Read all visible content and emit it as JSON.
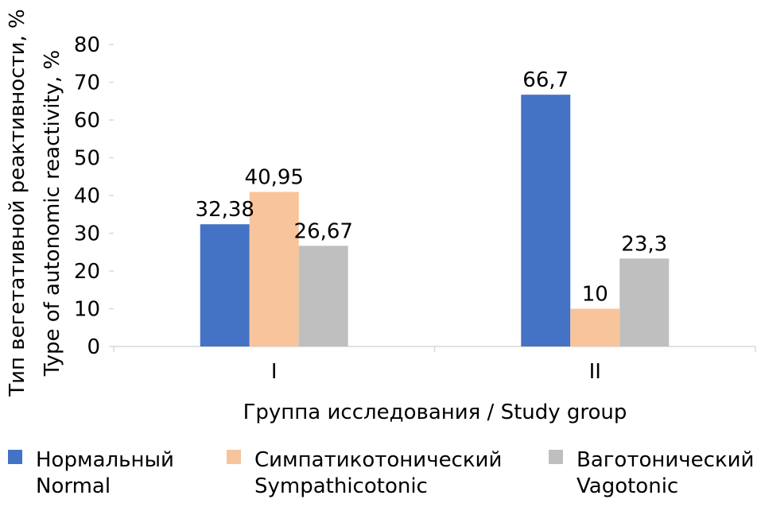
{
  "chart_data": {
    "type": "bar",
    "categories": [
      "I",
      "II"
    ],
    "series": [
      {
        "name": "Нормальный",
        "name_en": "Normal",
        "color": "#4472C4",
        "values": [
          32.38,
          66.7
        ],
        "value_labels": [
          "32,38",
          "66,7"
        ]
      },
      {
        "name": "Симпатикотонический",
        "name_en": "Sympathicotonic",
        "color": "#F8C49B",
        "values": [
          40.95,
          10
        ],
        "value_labels": [
          "40,95",
          "10"
        ]
      },
      {
        "name": "Ваготонический",
        "name_en": "Vagotonic",
        "color": "#BFBFBF",
        "values": [
          26.67,
          23.3
        ],
        "value_labels": [
          "26,67",
          "23,3"
        ]
      }
    ],
    "title": "",
    "xlabel": "Группа исследования / Study group",
    "ylabel_line1": "Тип вегетативной реактивности, %",
    "ylabel_line2": "Type of autonomic reactivity, %",
    "ylim": [
      0,
      80
    ],
    "yticks": [
      0,
      10,
      20,
      30,
      40,
      50,
      60,
      70,
      80
    ],
    "grid": false,
    "legend_position": "bottom"
  }
}
